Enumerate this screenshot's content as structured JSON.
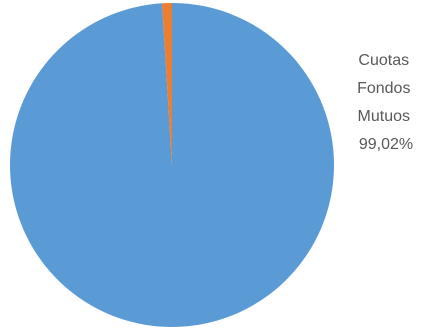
{
  "chart_data": {
    "type": "pie",
    "title": "",
    "slices": [
      {
        "label_lines": [
          "Cuotas",
          "Fondos",
          "Mutuos"
        ],
        "percent_label": "99,02%",
        "value": 99.02,
        "color": "#5B9BD5"
      },
      {
        "label_lines": [],
        "percent_label": "",
        "value": 0.98,
        "color": "#ED7D31"
      }
    ],
    "legend": "none"
  }
}
